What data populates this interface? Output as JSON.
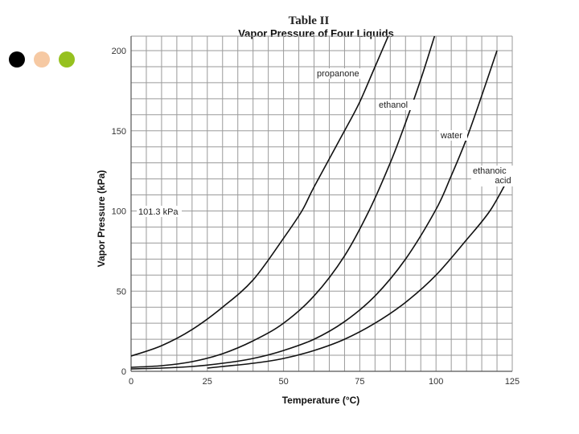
{
  "slide": {
    "dots": [
      {
        "name": "black",
        "color": "#000000"
      },
      {
        "name": "peach",
        "color": "#f6c9a3"
      },
      {
        "name": "green",
        "color": "#96c11f"
      }
    ]
  },
  "chart_data": {
    "type": "line",
    "table_label": "Table II",
    "title": "Vapor Pressure of Four Liquids",
    "xlabel": "Temperature (°C)",
    "ylabel": "Vapor Pressure (kPa)",
    "xlim": [
      0,
      125
    ],
    "ylim": [
      0,
      200
    ],
    "x_ticks": [
      0,
      25,
      50,
      75,
      100,
      125
    ],
    "y_ticks": [
      0,
      50,
      100,
      150,
      200
    ],
    "minor_x_step": 5,
    "minor_y_step": 10,
    "grid": true,
    "annotation": "101.3 kPa",
    "series": [
      {
        "name": "propanone",
        "color": "#111111",
        "points": [
          [
            0,
            9.5
          ],
          [
            10,
            16
          ],
          [
            20,
            26
          ],
          [
            30,
            40
          ],
          [
            40,
            57
          ],
          [
            50,
            83
          ],
          [
            56,
            100
          ],
          [
            60,
            115
          ],
          [
            70,
            150
          ],
          [
            75,
            168
          ],
          [
            80,
            190
          ],
          [
            85,
            212
          ]
        ]
      },
      {
        "name": "ethanol",
        "color": "#111111",
        "points": [
          [
            0,
            2.5
          ],
          [
            10,
            3.5
          ],
          [
            20,
            6
          ],
          [
            30,
            11
          ],
          [
            40,
            19
          ],
          [
            50,
            30
          ],
          [
            60,
            47
          ],
          [
            70,
            72
          ],
          [
            78,
            100
          ],
          [
            85,
            130
          ],
          [
            90,
            155
          ],
          [
            95,
            182
          ],
          [
            100,
            212
          ]
        ]
      },
      {
        "name": "water",
        "color": "#111111",
        "points": [
          [
            0,
            1.5
          ],
          [
            10,
            2
          ],
          [
            20,
            3
          ],
          [
            30,
            5
          ],
          [
            40,
            8
          ],
          [
            50,
            13
          ],
          [
            60,
            20
          ],
          [
            70,
            31
          ],
          [
            80,
            47
          ],
          [
            90,
            70
          ],
          [
            100,
            101
          ],
          [
            105,
            122
          ],
          [
            110,
            145
          ],
          [
            115,
            172
          ],
          [
            120,
            200
          ]
        ]
      },
      {
        "name": "ethanoic acid",
        "color": "#111111",
        "points": [
          [
            25,
            2
          ],
          [
            30,
            3
          ],
          [
            40,
            5
          ],
          [
            50,
            8
          ],
          [
            60,
            13
          ],
          [
            70,
            20
          ],
          [
            80,
            30
          ],
          [
            90,
            43
          ],
          [
            100,
            60
          ],
          [
            110,
            82
          ],
          [
            118,
            101
          ],
          [
            125,
            125
          ]
        ]
      }
    ],
    "series_labels": [
      {
        "text": "propanone"
      },
      {
        "text": "ethanol"
      },
      {
        "text": "water"
      },
      {
        "text": "ethanoic",
        "text2": "acid"
      }
    ]
  }
}
